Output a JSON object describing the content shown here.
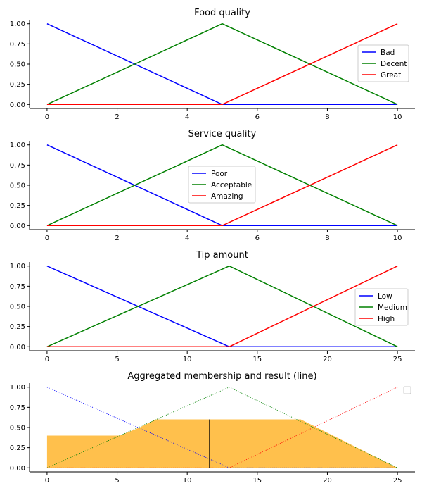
{
  "chart_data": [
    {
      "type": "line",
      "title": "Food quality",
      "xlim": [
        -0.5,
        10.5
      ],
      "ylim": [
        -0.05,
        1.05
      ],
      "xticks": [
        0,
        2,
        4,
        6,
        8,
        10
      ],
      "yticks": [
        0,
        0.25,
        0.5,
        0.75,
        1.0
      ],
      "legend": "center-right",
      "series": [
        {
          "name": "Bad",
          "color": "#0000ff",
          "x": [
            0,
            5,
            10
          ],
          "y": [
            1,
            0,
            0
          ]
        },
        {
          "name": "Decent",
          "color": "#008000",
          "x": [
            0,
            5,
            10
          ],
          "y": [
            0,
            1,
            0
          ]
        },
        {
          "name": "Great",
          "color": "#ff0000",
          "x": [
            0,
            5,
            10
          ],
          "y": [
            0,
            0,
            1
          ]
        }
      ]
    },
    {
      "type": "line",
      "title": "Service quality",
      "xlim": [
        -0.5,
        10.5
      ],
      "ylim": [
        -0.05,
        1.05
      ],
      "xticks": [
        0,
        2,
        4,
        6,
        8,
        10
      ],
      "yticks": [
        0,
        0.25,
        0.5,
        0.75,
        1.0
      ],
      "legend": "center",
      "series": [
        {
          "name": "Poor",
          "color": "#0000ff",
          "x": [
            0,
            5,
            10
          ],
          "y": [
            1,
            0,
            0
          ]
        },
        {
          "name": "Acceptable",
          "color": "#008000",
          "x": [
            0,
            5,
            10
          ],
          "y": [
            0,
            1,
            0
          ]
        },
        {
          "name": "Amazing",
          "color": "#ff0000",
          "x": [
            0,
            5,
            10
          ],
          "y": [
            0,
            0,
            1
          ]
        }
      ]
    },
    {
      "type": "line",
      "title": "Tip amount",
      "xlim": [
        -1.25,
        26.25
      ],
      "ylim": [
        -0.05,
        1.05
      ],
      "xticks": [
        0,
        5,
        10,
        15,
        20,
        25
      ],
      "yticks": [
        0,
        0.25,
        0.5,
        0.75,
        1.0
      ],
      "legend": "center-right",
      "series": [
        {
          "name": "Low",
          "color": "#0000ff",
          "x": [
            0,
            13,
            25
          ],
          "y": [
            1,
            0,
            0
          ]
        },
        {
          "name": "Medium",
          "color": "#008000",
          "x": [
            0,
            13,
            25
          ],
          "y": [
            0,
            1,
            0
          ]
        },
        {
          "name": "High",
          "color": "#ff0000",
          "x": [
            0,
            13,
            25
          ],
          "y": [
            0,
            0,
            1
          ]
        }
      ]
    },
    {
      "type": "area",
      "title": "Aggregated membership and result (line)",
      "xlim": [
        -1.25,
        26.25
      ],
      "ylim": [
        -0.05,
        1.05
      ],
      "xticks": [
        0,
        5,
        10,
        15,
        20,
        25
      ],
      "yticks": [
        0,
        0.25,
        0.5,
        0.75,
        1.0
      ],
      "legend": "top-right (empty)",
      "fill_color": "#ffa500",
      "fill_opacity": 0.7,
      "aggregated": {
        "x": [
          0,
          5.2,
          5.2,
          6.6,
          7.8,
          18.1,
          25
        ],
        "y": [
          0.4,
          0.4,
          0.4,
          0.5,
          0.6,
          0.6,
          0
        ]
      },
      "reference_lines": [
        {
          "color": "#0000ff",
          "style": "dotted",
          "x": [
            0,
            13,
            25
          ],
          "y": [
            1,
            0,
            0
          ]
        },
        {
          "color": "#008000",
          "style": "dotted",
          "x": [
            0,
            13,
            25
          ],
          "y": [
            0,
            1,
            0
          ]
        },
        {
          "color": "#ff0000",
          "style": "dotted",
          "x": [
            0,
            13,
            25
          ],
          "y": [
            0,
            0,
            1
          ]
        }
      ],
      "result": {
        "x": 11.6,
        "y": 0.6,
        "color": "#000000"
      }
    }
  ]
}
